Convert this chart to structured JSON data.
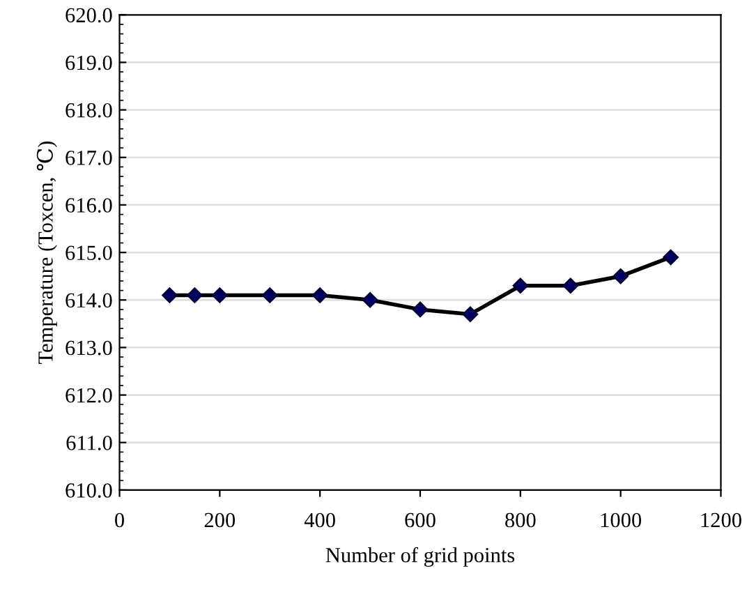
{
  "chart_data": {
    "type": "line",
    "xlabel": "Number of grid points",
    "ylabel": "Temperature (Toxcen, ℃)",
    "x": [
      100,
      150,
      200,
      300,
      400,
      500,
      600,
      700,
      800,
      900,
      1000,
      1100
    ],
    "series": [
      {
        "color": "#000000",
        "values": [
          614.1,
          614.1,
          614.1,
          614.1,
          614.1,
          614.0,
          613.8,
          613.7,
          614.3,
          614.3,
          614.5,
          614.9
        ]
      }
    ],
    "marker": "diamond",
    "line_style": "solid",
    "grid": "y",
    "legend": false,
    "xlim": [
      0,
      1200
    ],
    "xticks": [
      0,
      200,
      400,
      600,
      800,
      1000,
      1200
    ],
    "ylim": [
      610,
      620
    ],
    "yticks": [
      {
        "value": 610,
        "label": "610.0"
      },
      {
        "value": 611,
        "label": "611.0"
      },
      {
        "value": 612,
        "label": "612.0"
      },
      {
        "value": 613,
        "label": "613.0"
      },
      {
        "value": 614,
        "label": "614.0"
      },
      {
        "value": 615,
        "label": "615.0"
      },
      {
        "value": 616,
        "label": "616.0"
      },
      {
        "value": 617,
        "label": "617.0"
      },
      {
        "value": 618,
        "label": "618.0"
      },
      {
        "value": 619,
        "label": "619.0"
      },
      {
        "value": 620,
        "label": "620.0"
      }
    ]
  }
}
